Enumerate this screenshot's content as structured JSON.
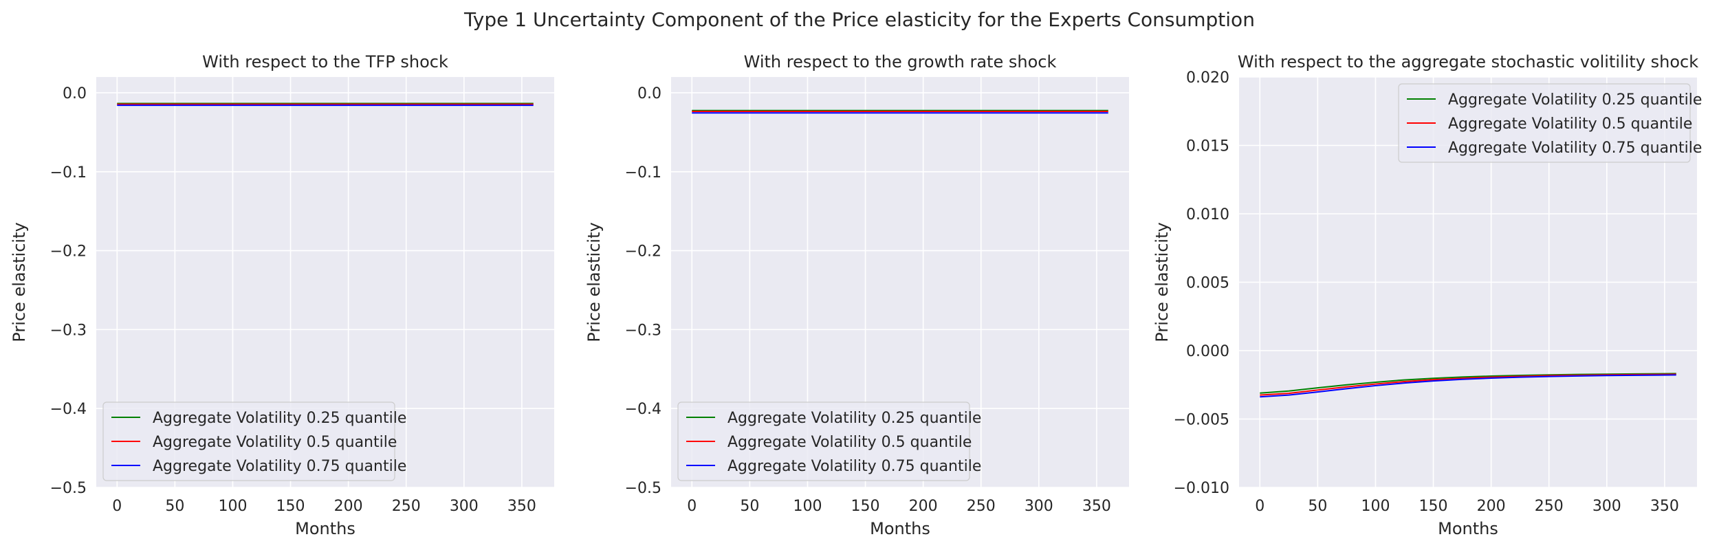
{
  "figure": {
    "suptitle": "Type 1 Uncertainty Component of the Price elasticity for the Experts Consumption"
  },
  "colors": {
    "axes_bg": "#eaeaf2",
    "grid": "#ffffff",
    "text": "#262626"
  },
  "chart_data": [
    {
      "type": "line",
      "title": "With respect to the TFP shock",
      "xlabel": "Months",
      "ylabel": "Price elasticity",
      "xlim": [
        -18,
        378
      ],
      "ylim": [
        -0.5,
        0.02
      ],
      "xticks": [
        0,
        50,
        100,
        150,
        200,
        250,
        300,
        350
      ],
      "xtick_labels": [
        "0",
        "50",
        "100",
        "150",
        "200",
        "250",
        "300",
        "350"
      ],
      "yticks": [
        -0.5,
        -0.4,
        -0.3,
        -0.2,
        -0.1,
        0.0
      ],
      "ytick_labels": [
        "−0.5",
        "−0.4",
        "−0.3",
        "−0.2",
        "−0.1",
        "0.0"
      ],
      "grid": true,
      "legend": "lower left",
      "series": [
        {
          "name": "Aggregate Volatility 0.25 quantile",
          "color": "#008000",
          "x": [
            0,
            360
          ],
          "y": [
            -0.0135,
            -0.0135
          ]
        },
        {
          "name": "Aggregate Volatility 0.5 quantile",
          "color": "#ff0000",
          "x": [
            0,
            360
          ],
          "y": [
            -0.0145,
            -0.0145
          ]
        },
        {
          "name": "Aggregate Volatility 0.75 quantile",
          "color": "#0000ff",
          "x": [
            0,
            360
          ],
          "y": [
            -0.0158,
            -0.0158
          ]
        }
      ]
    },
    {
      "type": "line",
      "title": "With respect to the growth rate shock",
      "xlabel": "Months",
      "ylabel": "Price elasticity",
      "xlim": [
        -18,
        378
      ],
      "ylim": [
        -0.5,
        0.02
      ],
      "xticks": [
        0,
        50,
        100,
        150,
        200,
        250,
        300,
        350
      ],
      "xtick_labels": [
        "0",
        "50",
        "100",
        "150",
        "200",
        "250",
        "300",
        "350"
      ],
      "yticks": [
        -0.5,
        -0.4,
        -0.3,
        -0.2,
        -0.1,
        0.0
      ],
      "ytick_labels": [
        "−0.5",
        "−0.4",
        "−0.3",
        "−0.2",
        "−0.1",
        "0.0"
      ],
      "grid": true,
      "legend": "lower left",
      "series": [
        {
          "name": "Aggregate Volatility 0.25 quantile",
          "color": "#008000",
          "x": [
            0,
            360
          ],
          "y": [
            -0.0225,
            -0.0225
          ]
        },
        {
          "name": "Aggregate Volatility 0.5 quantile",
          "color": "#ff0000",
          "x": [
            0,
            360
          ],
          "y": [
            -0.0235,
            -0.0235
          ]
        },
        {
          "name": "Aggregate Volatility 0.75 quantile",
          "color": "#0000ff",
          "x": [
            0,
            360
          ],
          "y": [
            -0.0255,
            -0.0255
          ]
        }
      ]
    },
    {
      "type": "line",
      "title": "With respect to the aggregate stochastic volitility shock",
      "xlabel": "Months",
      "ylabel": "Price elasticity",
      "xlim": [
        -18,
        378
      ],
      "ylim": [
        -0.01,
        0.02
      ],
      "xticks": [
        0,
        50,
        100,
        150,
        200,
        250,
        300,
        350
      ],
      "xtick_labels": [
        "0",
        "50",
        "100",
        "150",
        "200",
        "250",
        "300",
        "350"
      ],
      "yticks": [
        -0.01,
        -0.005,
        0.0,
        0.005,
        0.01,
        0.015,
        0.02
      ],
      "ytick_labels": [
        "−0.010",
        "−0.005",
        "0.000",
        "0.005",
        "0.010",
        "0.015",
        "0.020"
      ],
      "grid": true,
      "legend": "upper right",
      "series": [
        {
          "name": "Aggregate Volatility 0.25 quantile",
          "color": "#008000",
          "x": [
            0,
            25,
            50,
            75,
            100,
            125,
            150,
            175,
            200,
            225,
            250,
            275,
            300,
            325,
            360
          ],
          "y": [
            -0.0031,
            -0.00295,
            -0.00272,
            -0.0025,
            -0.00231,
            -0.00214,
            -0.00202,
            -0.00193,
            -0.00186,
            -0.00181,
            -0.00177,
            -0.00174,
            -0.00172,
            -0.0017,
            -0.00168
          ]
        },
        {
          "name": "Aggregate Volatility 0.5 quantile",
          "color": "#ff0000",
          "x": [
            0,
            25,
            50,
            75,
            100,
            125,
            150,
            175,
            200,
            225,
            250,
            275,
            300,
            325,
            360
          ],
          "y": [
            -0.00325,
            -0.00312,
            -0.00288,
            -0.00265,
            -0.00244,
            -0.00226,
            -0.00212,
            -0.00202,
            -0.00194,
            -0.00188,
            -0.00183,
            -0.0018,
            -0.00177,
            -0.00175,
            -0.00173
          ]
        },
        {
          "name": "Aggregate Volatility 0.75 quantile",
          "color": "#0000ff",
          "x": [
            0,
            25,
            50,
            75,
            100,
            125,
            150,
            175,
            200,
            225,
            250,
            275,
            300,
            325,
            360
          ],
          "y": [
            -0.00338,
            -0.00325,
            -0.00302,
            -0.00278,
            -0.00256,
            -0.00237,
            -0.00222,
            -0.0021,
            -0.00201,
            -0.00194,
            -0.00189,
            -0.00185,
            -0.00182,
            -0.0018,
            -0.00178
          ]
        }
      ]
    }
  ]
}
